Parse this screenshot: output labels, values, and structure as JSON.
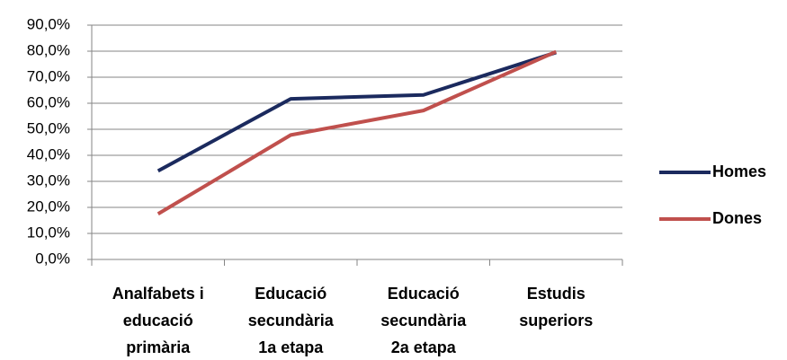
{
  "chart_data": {
    "type": "line",
    "categories": [
      "Analfabets i educació primària",
      "Educació secundària 1a etapa",
      "Educació secundària 2a etapa",
      "Estudis superiors"
    ],
    "series": [
      {
        "name": "Homes",
        "color": "#1b2a5e",
        "values": [
          34.0,
          61.7,
          63.2,
          79.5
        ]
      },
      {
        "name": "Dones",
        "color": "#c0504d",
        "values": [
          17.5,
          47.8,
          57.2,
          79.8
        ]
      }
    ],
    "ylim": [
      0,
      90
    ],
    "yticks": [
      {
        "value": 0,
        "label": "0,0%"
      },
      {
        "value": 10,
        "label": "10,0%"
      },
      {
        "value": 20,
        "label": "20,0%"
      },
      {
        "value": 30,
        "label": "30,0%"
      },
      {
        "value": 40,
        "label": "40,0%"
      },
      {
        "value": 50,
        "label": "50,0%"
      },
      {
        "value": 60,
        "label": "60,0%"
      },
      {
        "value": 70,
        "label": "70,0%"
      },
      {
        "value": 80,
        "label": "80,0%"
      },
      {
        "value": 90,
        "label": "90,0%"
      }
    ],
    "grid": true,
    "legend": "right"
  }
}
